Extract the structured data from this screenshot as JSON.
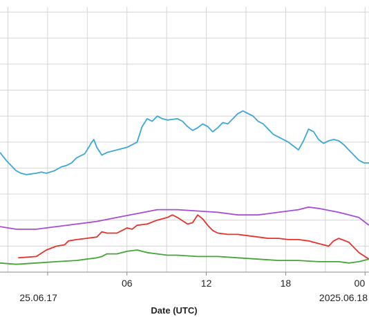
{
  "chart_data": {
    "type": "line",
    "title": "",
    "xlabel": "Date (UTC)",
    "ylabel": "",
    "x_range_hours": [
      -3.6,
      24.3
    ],
    "y_range": [
      0,
      10.2
    ],
    "grid": true,
    "legend": "none",
    "x_ticks": [
      {
        "hour": 0,
        "label": ""
      },
      {
        "hour": 6,
        "label": "06"
      },
      {
        "hour": 12,
        "label": "12"
      },
      {
        "hour": 18,
        "label": "18"
      },
      {
        "hour": 24,
        "label": "00"
      }
    ],
    "date_labels": [
      {
        "hour": 0,
        "label": "25.06.17",
        "anchor": "end"
      },
      {
        "hour": 24,
        "label": "2025.06.18",
        "anchor": "end"
      }
    ],
    "y_grid_values": [
      0,
      1,
      2,
      3,
      4,
      5,
      6,
      7,
      8,
      9,
      10
    ],
    "series": [
      {
        "color": "#3aa7d8",
        "points": [
          [
            -3.6,
            4.6
          ],
          [
            -3,
            4.3
          ],
          [
            -2,
            3.9
          ],
          [
            -1.5,
            3.8
          ],
          [
            -1,
            3.75
          ],
          [
            0,
            3.8
          ],
          [
            0.5,
            3.85
          ],
          [
            1,
            3.8
          ],
          [
            1.8,
            3.9
          ],
          [
            2.5,
            4.05
          ],
          [
            3,
            4.1
          ],
          [
            3.5,
            4.2
          ],
          [
            4,
            4.4
          ],
          [
            4.8,
            4.55
          ],
          [
            5.2,
            4.8
          ],
          [
            5.5,
            5.0
          ],
          [
            5.7,
            5.1
          ],
          [
            6,
            4.8
          ],
          [
            6.5,
            4.5
          ],
          [
            7,
            4.6
          ],
          [
            8,
            4.7
          ],
          [
            9,
            4.8
          ],
          [
            10,
            5.0
          ],
          [
            10.5,
            5.6
          ],
          [
            11,
            5.9
          ],
          [
            11.5,
            5.8
          ],
          [
            12,
            6.0
          ],
          [
            12.5,
            5.9
          ],
          [
            13,
            5.85
          ],
          [
            14,
            5.9
          ],
          [
            14.5,
            5.8
          ],
          [
            15,
            5.6
          ],
          [
            15.5,
            5.45
          ],
          [
            16,
            5.55
          ],
          [
            16.5,
            5.7
          ],
          [
            17,
            5.6
          ],
          [
            17.5,
            5.4
          ],
          [
            18,
            5.55
          ],
          [
            18.5,
            5.75
          ],
          [
            19,
            5.7
          ],
          [
            19.5,
            5.9
          ],
          [
            20,
            6.1
          ],
          [
            20.5,
            6.2
          ],
          [
            21,
            6.1
          ],
          [
            21.5,
            6.0
          ],
          [
            22,
            5.8
          ],
          [
            22.5,
            5.7
          ],
          [
            23,
            5.5
          ],
          [
            23.5,
            5.3
          ],
          [
            24,
            5.2
          ],
          [
            25,
            5.0
          ],
          [
            25.5,
            4.85
          ],
          [
            26,
            4.7
          ],
          [
            26.5,
            5.05
          ],
          [
            27,
            5.5
          ],
          [
            27.5,
            5.4
          ],
          [
            28,
            5.1
          ],
          [
            28.5,
            4.95
          ],
          [
            29,
            5.05
          ],
          [
            29.5,
            5.1
          ],
          [
            30,
            5.05
          ],
          [
            30.5,
            4.9
          ],
          [
            31,
            4.7
          ],
          [
            31.5,
            4.5
          ],
          [
            32,
            4.3
          ],
          [
            32.5,
            4.2
          ],
          [
            33,
            4.2
          ]
        ]
      },
      {
        "color": "#a54bd8",
        "points": [
          [
            -3.6,
            1.75
          ],
          [
            -2,
            1.65
          ],
          [
            0,
            1.65
          ],
          [
            2,
            1.75
          ],
          [
            4,
            1.85
          ],
          [
            6,
            1.95
          ],
          [
            8,
            2.1
          ],
          [
            10,
            2.25
          ],
          [
            12,
            2.4
          ],
          [
            14,
            2.4
          ],
          [
            16,
            2.35
          ],
          [
            18,
            2.3
          ],
          [
            20,
            2.2
          ],
          [
            22,
            2.2
          ],
          [
            24,
            2.3
          ],
          [
            26,
            2.4
          ],
          [
            27,
            2.5
          ],
          [
            28,
            2.45
          ],
          [
            30,
            2.3
          ],
          [
            32,
            2.1
          ],
          [
            33,
            1.8
          ]
        ]
      },
      {
        "color": "#e8302a",
        "points": [
          [
            -1.8,
            0.55
          ],
          [
            0,
            0.6
          ],
          [
            1,
            0.85
          ],
          [
            2,
            1.0
          ],
          [
            2.8,
            1.05
          ],
          [
            3.2,
            1.2
          ],
          [
            4,
            1.25
          ],
          [
            5,
            1.3
          ],
          [
            6,
            1.35
          ],
          [
            6.5,
            1.55
          ],
          [
            7,
            1.5
          ],
          [
            8,
            1.5
          ],
          [
            8.5,
            1.6
          ],
          [
            9,
            1.7
          ],
          [
            9.5,
            1.65
          ],
          [
            10,
            1.8
          ],
          [
            11,
            1.85
          ],
          [
            12,
            2.0
          ],
          [
            13,
            2.1
          ],
          [
            13.5,
            2.2
          ],
          [
            14,
            2.1
          ],
          [
            15,
            1.85
          ],
          [
            15.5,
            1.9
          ],
          [
            16,
            2.2
          ],
          [
            16.5,
            2.05
          ],
          [
            17,
            1.8
          ],
          [
            17.5,
            1.6
          ],
          [
            18,
            1.5
          ],
          [
            19,
            1.45
          ],
          [
            20,
            1.45
          ],
          [
            21,
            1.4
          ],
          [
            22,
            1.35
          ],
          [
            23,
            1.3
          ],
          [
            24,
            1.3
          ],
          [
            25,
            1.25
          ],
          [
            26,
            1.25
          ],
          [
            27,
            1.2
          ],
          [
            28,
            1.1
          ],
          [
            29,
            1.0
          ],
          [
            29.5,
            1.2
          ],
          [
            30,
            1.3
          ],
          [
            31,
            1.15
          ],
          [
            32,
            0.75
          ],
          [
            33,
            0.5
          ]
        ]
      },
      {
        "color": "#43a535",
        "points": [
          [
            -3.6,
            0.35
          ],
          [
            -2,
            0.3
          ],
          [
            0,
            0.35
          ],
          [
            2,
            0.4
          ],
          [
            4,
            0.45
          ],
          [
            5,
            0.5
          ],
          [
            6,
            0.55
          ],
          [
            6.5,
            0.6
          ],
          [
            7,
            0.7
          ],
          [
            8,
            0.7
          ],
          [
            9,
            0.8
          ],
          [
            10,
            0.85
          ],
          [
            11,
            0.75
          ],
          [
            12,
            0.7
          ],
          [
            13,
            0.65
          ],
          [
            14,
            0.65
          ],
          [
            16,
            0.6
          ],
          [
            18,
            0.6
          ],
          [
            20,
            0.55
          ],
          [
            22,
            0.5
          ],
          [
            24,
            0.45
          ],
          [
            26,
            0.45
          ],
          [
            28,
            0.4
          ],
          [
            30,
            0.4
          ],
          [
            31,
            0.35
          ],
          [
            32,
            0.4
          ],
          [
            33,
            0.5
          ]
        ]
      }
    ]
  }
}
